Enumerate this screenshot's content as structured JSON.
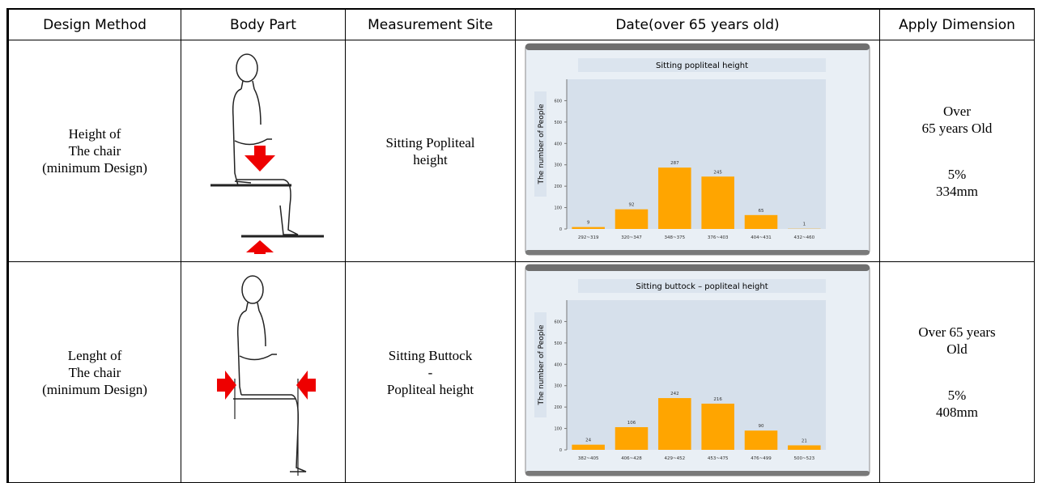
{
  "table": {
    "header": [
      "Design Method",
      "Body Part",
      "Measurement Site",
      "Date(over 65 years old)",
      "Apply Dimension"
    ],
    "rows": [
      {
        "design": [
          "Height of",
          "The chair",
          "(minimum Design)"
        ],
        "site": [
          "Sitting Popliteal",
          "height"
        ],
        "apply": [
          [
            "Over",
            "65 years Old"
          ],
          [
            "5%",
            "334mm"
          ]
        ]
      },
      {
        "design": [
          "Lenght of",
          "The chair",
          "(minimum Design)"
        ],
        "site": [
          "Sitting Buttock",
          "-",
          "Popliteal height"
        ],
        "apply": [
          [
            "Over 65 years",
            "Old"
          ],
          [
            "5%",
            "408mm"
          ]
        ]
      }
    ]
  },
  "chart_data": [
    {
      "type": "bar",
      "title": "Sitting popliteal height",
      "ylabel": "The number of People",
      "categories": [
        "292~319",
        "320~347",
        "348~375",
        "376~403",
        "404~431",
        "432~460"
      ],
      "values": [
        9,
        92,
        287,
        245,
        65,
        1
      ],
      "color": "#ffa500",
      "ylim": [
        0,
        700
      ],
      "yticks": [
        0,
        100,
        200,
        300,
        400,
        500,
        600
      ]
    },
    {
      "type": "bar",
      "title": "Sitting buttock – popliteal height",
      "ylabel": "The number of People",
      "categories": [
        "382~405",
        "406~428",
        "429~452",
        "453~475",
        "476~499",
        "500~523"
      ],
      "values": [
        24,
        106,
        242,
        216,
        90,
        21
      ],
      "color": "#ffa500",
      "ylim": [
        0,
        700
      ],
      "yticks": [
        0,
        100,
        200,
        300,
        400,
        500,
        600
      ]
    }
  ]
}
